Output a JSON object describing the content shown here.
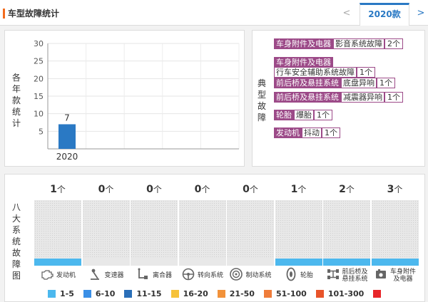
{
  "header": {
    "title": "车型故障统计",
    "prev_label": "<",
    "year_tab": "2020款",
    "next_label": ">"
  },
  "year_panel": {
    "vertical_label": "各年款统计"
  },
  "typical_panel": {
    "vertical_label": "典型故障",
    "rows": [
      {
        "category": "车身附件及电器",
        "symptom": "影音系统故障",
        "count": "2个"
      },
      {
        "category": "车身附件及电器",
        "subcategory": "行车安全辅助系统故障",
        "count": "1个"
      },
      {
        "category": "前后桥及悬挂系统",
        "symptom": "底盘异响",
        "count": "1个"
      },
      {
        "category": "前后桥及悬挂系统",
        "symptom": "减震器异响",
        "count": "1个"
      },
      {
        "category": "轮胎",
        "symptom": "爆胎",
        "count": "1个"
      },
      {
        "category": "发动机",
        "symptom": "抖动",
        "count": "1个"
      }
    ]
  },
  "eight_panel": {
    "vertical_label": "八大系统故障图",
    "unit": "个",
    "systems": [
      {
        "name": "发动机",
        "count": "1",
        "icon": "engine-icon",
        "level_color": "#4cb8ee"
      },
      {
        "name": "变速器",
        "count": "0",
        "icon": "gear-shift-icon",
        "level_color": null
      },
      {
        "name": "离合器",
        "count": "0",
        "icon": "clutch-pedal-icon",
        "level_color": null
      },
      {
        "name": "转向系统",
        "count": "0",
        "icon": "steering-wheel-icon",
        "level_color": null
      },
      {
        "name": "制动系统",
        "count": "0",
        "icon": "brake-disc-icon",
        "level_color": null
      },
      {
        "name": "轮胎",
        "count": "1",
        "icon": "tire-icon",
        "level_color": "#4cb8ee"
      },
      {
        "name": "前后桥及悬挂系统",
        "count": "2",
        "icon": "axle-icon",
        "level_color": "#4cb8ee"
      },
      {
        "name": "车身附件及电器",
        "count": "3",
        "icon": "car-body-icon",
        "level_color": "#4cb8ee"
      }
    ],
    "legend": [
      {
        "label": "1-5",
        "color": "#4cb8ee"
      },
      {
        "label": "6-10",
        "color": "#3a8fe6"
      },
      {
        "label": "11-15",
        "color": "#2a6fb8"
      },
      {
        "label": "16-20",
        "color": "#f6c23a"
      },
      {
        "label": "21-50",
        "color": "#f2923a"
      },
      {
        "label": "51-100",
        "color": "#ef7c3a"
      },
      {
        "label": "101-300",
        "color": "#e8542a"
      },
      {
        "label": "",
        "color": "#e8262a"
      }
    ]
  },
  "chart_data": {
    "type": "bar",
    "categories": [
      "2020"
    ],
    "values": [
      7
    ],
    "ylim": [
      0,
      30
    ],
    "yticks": [
      5,
      10,
      15,
      20,
      25,
      30
    ],
    "grid": true,
    "bar_color": "#2a79c4",
    "xlabel": "",
    "ylabel": "各年款统计"
  }
}
